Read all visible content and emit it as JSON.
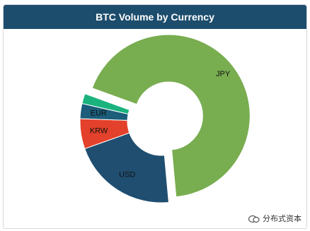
{
  "chart_data": {
    "type": "pie",
    "title": "BTC Volume by Currency",
    "categories": [
      "JPY",
      "USD",
      "KRW",
      "EUR",
      null
    ],
    "values": [
      68,
      21,
      6,
      3,
      2
    ],
    "colors": [
      "#78ad50",
      "#1f4e70",
      "#e3412b",
      "#1b5d7a",
      "#1ab37d"
    ]
  },
  "watermark": "分布式资本"
}
